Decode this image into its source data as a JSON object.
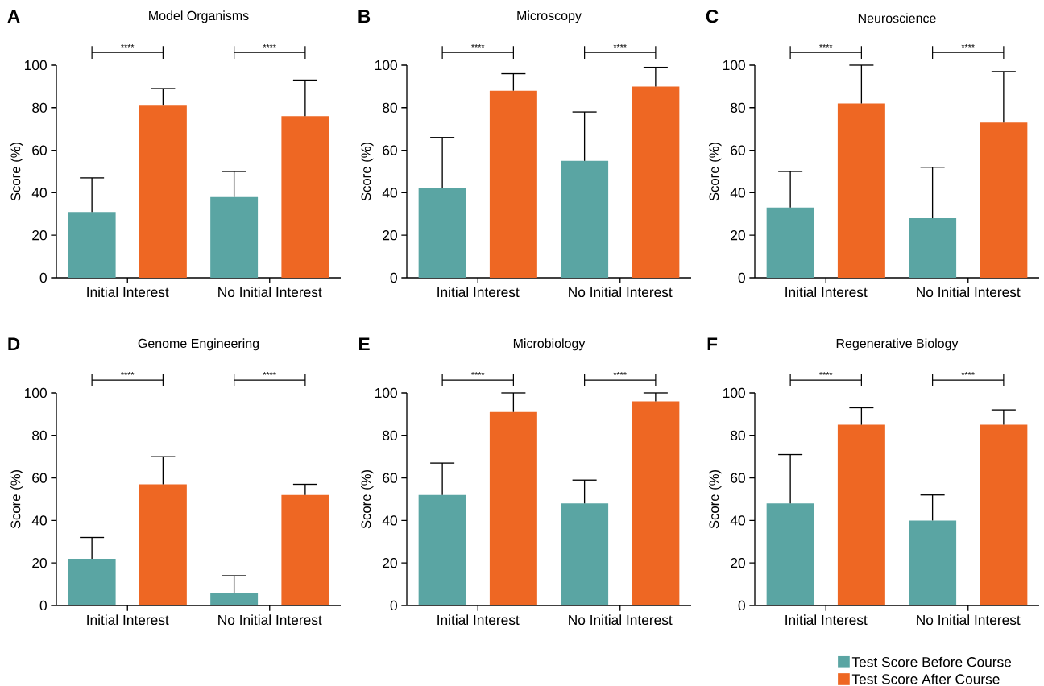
{
  "chart_data": [
    {
      "type": "bar",
      "title": "Model Organisms",
      "ylabel": "Score (%)",
      "categories": [
        "Initial Interest",
        "No Initial Interest"
      ],
      "ylim": [
        0,
        100
      ],
      "yticks": [
        0,
        20,
        40,
        60,
        80,
        100
      ],
      "annotations": [
        "A",
        "****",
        "****"
      ],
      "series": [
        {
          "color": "#5aa5a3",
          "values": [
            31,
            38
          ],
          "errors": [
            [
              31,
              47
            ],
            [
              38,
              50
            ]
          ]
        },
        {
          "color": "#ee6723",
          "values": [
            81,
            76
          ],
          "errors": [
            [
              81,
              89
            ],
            [
              76,
              93
            ]
          ]
        }
      ]
    },
    {
      "type": "bar",
      "title": "Microscopy",
      "ylabel": "Score (%)",
      "categories": [
        "Initial Interest",
        "No Initial Interest"
      ],
      "ylim": [
        0,
        100
      ],
      "yticks": [
        0,
        20,
        40,
        60,
        80,
        100
      ],
      "annotations": [
        "B",
        "****",
        "****"
      ],
      "series": [
        {
          "color": "#5aa5a3",
          "values": [
            42,
            55
          ],
          "errors": [
            [
              42,
              66
            ],
            [
              55,
              78
            ]
          ]
        },
        {
          "color": "#ee6723",
          "values": [
            88,
            90
          ],
          "errors": [
            [
              88,
              96
            ],
            [
              90,
              99
            ]
          ]
        }
      ]
    },
    {
      "type": "bar",
      "title": "Neuroscience",
      "ylabel": "Score (%)",
      "categories": [
        "Initial Interest",
        "No Initial Interest"
      ],
      "ylim": [
        0,
        100
      ],
      "yticks": [
        0,
        20,
        40,
        60,
        80,
        100
      ],
      "annotations": [
        "C",
        "****",
        "****"
      ],
      "series": [
        {
          "color": "#5aa5a3",
          "values": [
            33,
            28
          ],
          "errors": [
            [
              33,
              50
            ],
            [
              28,
              52
            ]
          ]
        },
        {
          "color": "#ee6723",
          "values": [
            82,
            73
          ],
          "errors": [
            [
              82,
              100
            ],
            [
              73,
              97
            ]
          ]
        }
      ]
    },
    {
      "type": "bar",
      "title": "Genome Engineering",
      "ylabel": "Score (%)",
      "categories": [
        "Initial Interest",
        "No Initial Interest"
      ],
      "ylim": [
        0,
        100
      ],
      "yticks": [
        0,
        20,
        40,
        60,
        80,
        100
      ],
      "annotations": [
        "D",
        "****",
        "****"
      ],
      "series": [
        {
          "color": "#5aa5a3",
          "values": [
            22,
            6
          ],
          "errors": [
            [
              22,
              32
            ],
            [
              6,
              14
            ]
          ]
        },
        {
          "color": "#ee6723",
          "values": [
            57,
            52
          ],
          "errors": [
            [
              57,
              70
            ],
            [
              52,
              57
            ]
          ]
        }
      ]
    },
    {
      "type": "bar",
      "title": "Microbiology",
      "ylabel": "Score (%)",
      "categories": [
        "Initial Interest",
        "No Initial Interest"
      ],
      "ylim": [
        0,
        100
      ],
      "yticks": [
        0,
        20,
        40,
        60,
        80,
        100
      ],
      "annotations": [
        "E",
        "****",
        "****"
      ],
      "series": [
        {
          "color": "#5aa5a3",
          "values": [
            52,
            48
          ],
          "errors": [
            [
              52,
              67
            ],
            [
              48,
              59
            ]
          ]
        },
        {
          "color": "#ee6723",
          "values": [
            91,
            96
          ],
          "errors": [
            [
              91,
              100
            ],
            [
              96,
              100
            ]
          ]
        }
      ]
    },
    {
      "type": "bar",
      "title": "Regenerative Biology",
      "ylabel": "Score (%)",
      "categories": [
        "Initial Interest",
        "No Initial Interest"
      ],
      "ylim": [
        0,
        100
      ],
      "yticks": [
        0,
        20,
        40,
        60,
        80,
        100
      ],
      "annotations": [
        "F",
        "****",
        "****"
      ],
      "legend": "bottom right",
      "series": [
        {
          "name": "Test Score Before Course",
          "color": "#5aa5a3",
          "values": [
            48,
            40
          ],
          "errors": [
            [
              48,
              71
            ],
            [
              40,
              52
            ]
          ]
        },
        {
          "name": "Test Score After Course",
          "color": "#ee6723",
          "values": [
            85,
            85
          ],
          "errors": [
            [
              85,
              93
            ],
            [
              85,
              92
            ]
          ]
        }
      ]
    }
  ]
}
